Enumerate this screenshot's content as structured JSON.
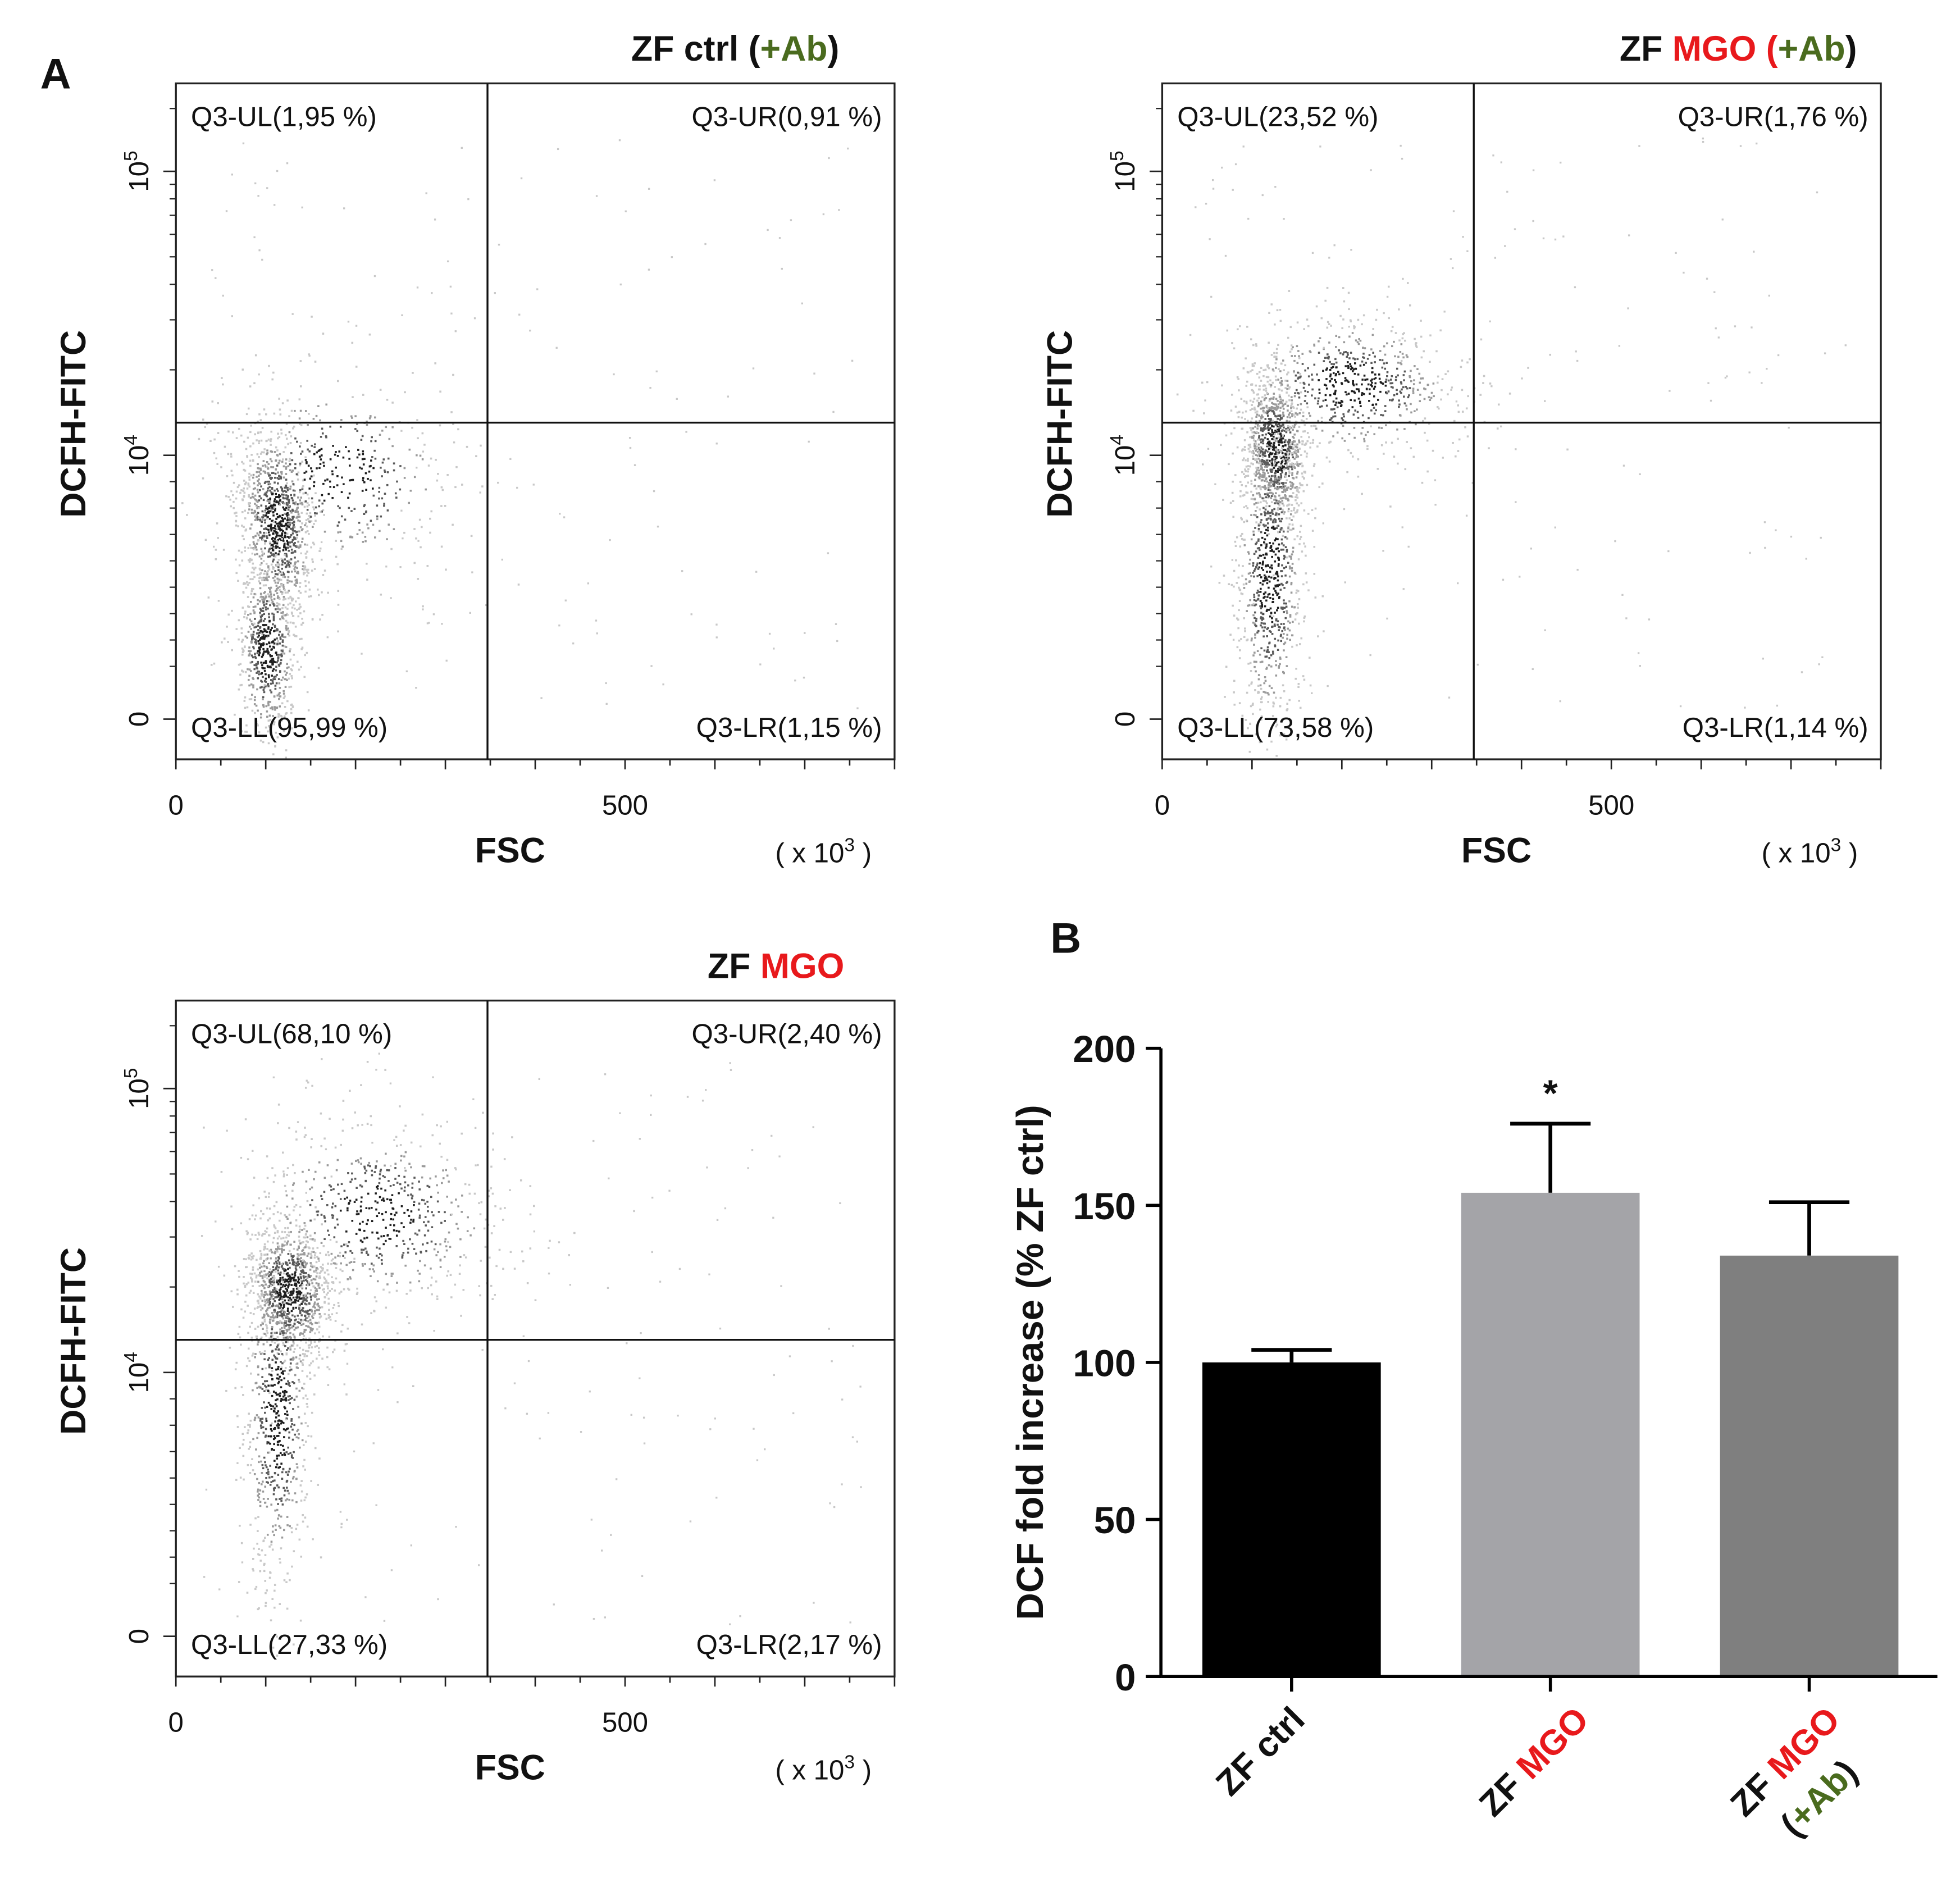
{
  "colors": {
    "mgo_red": "#e8191c",
    "ab_green": "#4a6b1e",
    "text": "#111111",
    "scatter_light": "#c8c8c8",
    "scatter_dark": "#1e1e1e",
    "bar_ctrl": "#000000",
    "bar_mgo": "#a4a4a8",
    "bar_mgo_ab": "#7f7f7f"
  },
  "panel_labels": {
    "a": "A",
    "b": "B"
  },
  "flow_common": {
    "ylabel": "DCFH-FITC",
    "xlabel": "FSC",
    "x_scale_note_prefix": "( x 10",
    "x_scale_note_exp": "3",
    "x_scale_note_suffix": " )",
    "x_ticks": [
      "0",
      "500"
    ],
    "y_tick_zero": "0",
    "y_tick_base": "10",
    "y_tick_exp4": "4",
    "y_tick_exp5": "5",
    "title_zf": "ZF ",
    "title_ctrl": "ctrl ",
    "title_paren_open": "(",
    "title_plus_ab": "+Ab",
    "title_paren_close": ")",
    "title_mgo": "MGO"
  },
  "chart_data": [
    {
      "type": "scatter",
      "subtype": "flow-cytometry-density",
      "title": "ZF ctrl (+Ab)",
      "xlabel": "FSC",
      "ylabel": "DCFH-FITC",
      "x_range": [
        0,
        800
      ],
      "x_units": "x 10^3",
      "y_scale": "biexponential",
      "y_ticks": [
        "0",
        "10^4",
        "10^5"
      ],
      "quadrants": {
        "UL": "Q3-UL(1,95 %)",
        "UR": "Q3-UR(0,91 %)",
        "LL": "Q3-LL(95,99 %)",
        "LR": "Q3-LR(1,15 %)"
      },
      "quadrant_percent": {
        "UL": 1.95,
        "UR": 0.91,
        "LL": 95.99,
        "LR": 1.15
      }
    },
    {
      "type": "scatter",
      "subtype": "flow-cytometry-density",
      "title": "ZF MGO (+Ab)",
      "xlabel": "FSC",
      "ylabel": "DCFH-FITC",
      "x_range": [
        0,
        800
      ],
      "x_units": "x 10^3",
      "y_scale": "biexponential",
      "y_ticks": [
        "0",
        "10^4",
        "10^5"
      ],
      "quadrants": {
        "UL": "Q3-UL(23,52 %)",
        "UR": "Q3-UR(1,76 %)",
        "LL": "Q3-LL(73,58 %)",
        "LR": "Q3-LR(1,14 %)"
      },
      "quadrant_percent": {
        "UL": 23.52,
        "UR": 1.76,
        "LL": 73.58,
        "LR": 1.14
      }
    },
    {
      "type": "scatter",
      "subtype": "flow-cytometry-density",
      "title": "ZF MGO",
      "xlabel": "FSC",
      "ylabel": "DCFH-FITC",
      "x_range": [
        0,
        800
      ],
      "x_units": "x 10^3",
      "y_scale": "biexponential",
      "y_ticks": [
        "0",
        "10^4",
        "10^5"
      ],
      "quadrants": {
        "UL": "Q3-UL(68,10 %)",
        "UR": "Q3-UR(2,40 %)",
        "LL": "Q3-LL(27,33 %)",
        "LR": "Q3-LR(2,17 %)"
      },
      "quadrant_percent": {
        "UL": 68.1,
        "UR": 2.4,
        "LL": 27.33,
        "LR": 2.17
      }
    },
    {
      "type": "bar",
      "title": "",
      "ylabel": "DCF fold increase (% ZF ctrl)",
      "xlabel": "",
      "ylim": [
        0,
        200
      ],
      "y_ticks": [
        0,
        50,
        100,
        150,
        200
      ],
      "categories": [
        "ZF ctrl",
        "ZF MGO",
        "ZF MGO (+Ab)"
      ],
      "values": [
        100,
        154,
        134
      ],
      "errors": [
        4,
        22,
        17
      ],
      "significance": [
        "",
        "*",
        ""
      ]
    }
  ]
}
